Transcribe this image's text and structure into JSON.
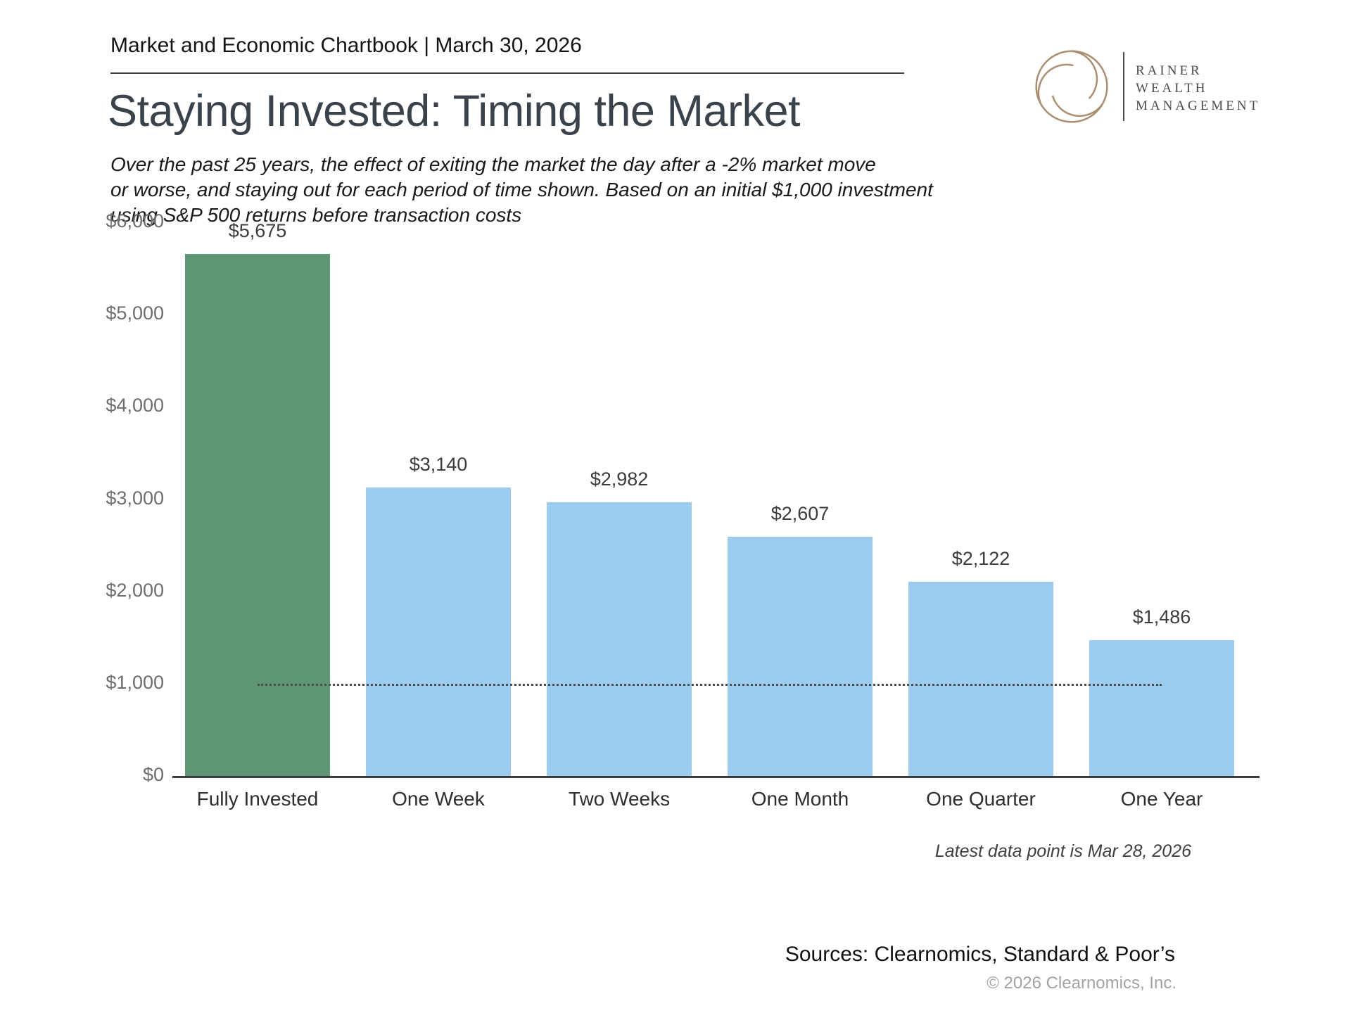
{
  "header": {
    "chartbook_label": "Market and Economic Chartbook | March 30, 2026"
  },
  "logo": {
    "name_lines": [
      "RAINER",
      "WEALTH",
      "MANAGEMENT"
    ],
    "spiral_color": "#a98e72",
    "icon": "swirl-spiral-logo"
  },
  "page": {
    "title": "Staying Invested: Timing the Market",
    "subtitle_lines": [
      "Over the past 25 years, the effect of exiting the market the day after a -2% market move",
      "or worse, and staying out for each period of time shown. Based on an initial $1,000 investment",
      "using S&P 500 returns before transaction costs"
    ]
  },
  "chart_data": {
    "type": "bar",
    "categories": [
      "Fully Invested",
      "One Week",
      "Two Weeks",
      "One Month",
      "One Quarter",
      "One Year"
    ],
    "values": [
      5675,
      3140,
      2982,
      2607,
      2122,
      1486
    ],
    "value_labels": [
      "$5,675",
      "$3,140",
      "$2,982",
      "$2,607",
      "$2,122",
      "$1,486"
    ],
    "bar_colors": [
      "#5e9574",
      "#9ccdf1",
      "#9ccdf1",
      "#9ccdf1",
      "#9ccdf1",
      "#9ccdf1"
    ],
    "y_ticks": [
      "$0",
      "$1,000",
      "$2,000",
      "$3,000",
      "$4,000",
      "$5,000",
      "$6,000"
    ],
    "ylim": [
      0,
      6000
    ],
    "grid": false,
    "legend": "none",
    "reference_line": {
      "value": 1000,
      "style": "dotted"
    }
  },
  "footer": {
    "latest_note": "Latest data point is Mar 28, 2026",
    "sources": "Sources: Clearnomics, Standard & Poor’s",
    "copyright": "© 2026 Clearnomics, Inc."
  }
}
